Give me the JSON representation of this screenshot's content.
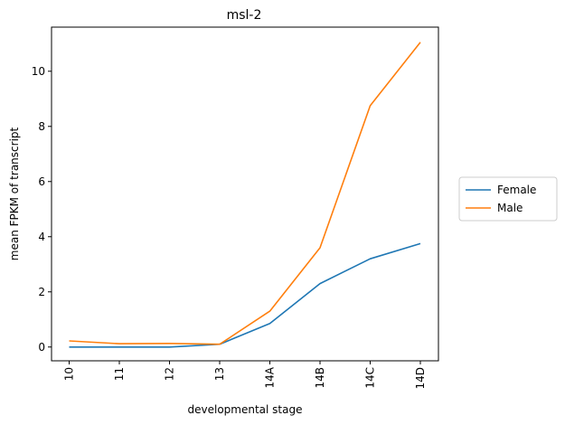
{
  "chart_data": {
    "type": "line",
    "title": "msl-2",
    "xlabel": "developmental stage",
    "ylabel": "mean FPKM of transcript",
    "categories": [
      "10",
      "11",
      "12",
      "13",
      "14A",
      "14B",
      "14C",
      "14D"
    ],
    "yticks": [
      0,
      2,
      4,
      6,
      8,
      10
    ],
    "ylim": [
      -0.5,
      11.6
    ],
    "grid": false,
    "legend_position": "right",
    "series": [
      {
        "name": "Female",
        "color": "#1f77b4",
        "values": [
          0.0,
          0.0,
          0.0,
          0.1,
          0.85,
          2.3,
          3.2,
          3.75
        ]
      },
      {
        "name": "Male",
        "color": "#ff7f0e",
        "values": [
          0.22,
          0.12,
          0.13,
          0.1,
          1.3,
          3.6,
          8.75,
          11.05
        ]
      }
    ]
  }
}
